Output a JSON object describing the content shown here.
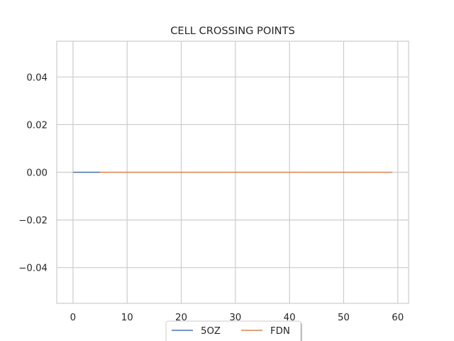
{
  "chart_data": {
    "type": "line",
    "title": "CELL CROSSING POINTS",
    "xlabel": "",
    "ylabel": "",
    "xlim": [
      -3,
      62
    ],
    "ylim": [
      -0.055,
      0.055
    ],
    "xticks": [
      0,
      10,
      20,
      30,
      40,
      50,
      60
    ],
    "yticks": [
      -0.04,
      -0.02,
      0.0,
      0.02,
      0.04
    ],
    "xtick_labels": [
      "0",
      "10",
      "20",
      "30",
      "40",
      "50",
      "60"
    ],
    "ytick_labels": [
      "−0.04",
      "−0.02",
      "0.00",
      "0.02",
      "0.04"
    ],
    "grid": true,
    "legend_position": "bottom-center",
    "series": [
      {
        "name": "5OZ",
        "color": "#4c72b0",
        "x": [
          0,
          5
        ],
        "y": [
          0,
          0
        ]
      },
      {
        "name": "FDN",
        "color": "#dd8452",
        "x": [
          5,
          59
        ],
        "y": [
          0,
          0
        ]
      }
    ]
  }
}
